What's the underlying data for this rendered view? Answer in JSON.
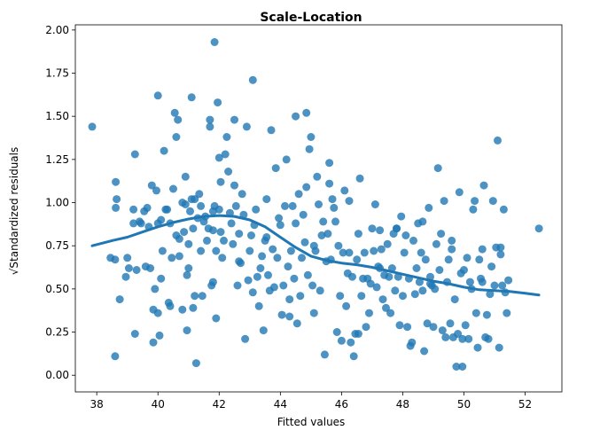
{
  "chart_data": {
    "type": "scatter",
    "title": "Scale-Location",
    "xlabel": "Fitted values",
    "ylabel": "√Standardized residuals",
    "xlim": [
      37.3,
      53.2
    ],
    "ylim": [
      -0.0965,
      2.03
    ],
    "xticks": [
      38,
      40,
      42,
      44,
      46,
      48,
      50,
      52
    ],
    "yticks": [
      0.0,
      0.25,
      0.5,
      0.75,
      1.0,
      1.25,
      1.5,
      1.75,
      2.0
    ],
    "xtick_labels": [
      "38",
      "40",
      "42",
      "44",
      "46",
      "48",
      "50",
      "52"
    ],
    "ytick_labels": [
      "0.00",
      "0.25",
      "0.50",
      "0.75",
      "1.00",
      "1.25",
      "1.50",
      "1.75",
      "2.00"
    ],
    "grid": false,
    "colors": {
      "points": "#1f77b4",
      "line": "#1f77b4"
    },
    "points": [
      [
        37.85,
        1.44
      ],
      [
        38.45,
        0.68
      ],
      [
        38.6,
        0.11
      ],
      [
        38.62,
        1.12
      ],
      [
        38.62,
        0.97
      ],
      [
        38.65,
        1.02
      ],
      [
        38.75,
        0.44
      ],
      [
        38.95,
        0.57
      ],
      [
        39.0,
        0.68
      ],
      [
        39.05,
        0.62
      ],
      [
        39.2,
        0.96
      ],
      [
        39.2,
        0.88
      ],
      [
        39.25,
        1.28
      ],
      [
        39.3,
        0.61
      ],
      [
        39.4,
        0.89
      ],
      [
        39.45,
        0.88
      ],
      [
        39.55,
        0.95
      ],
      [
        39.6,
        0.63
      ],
      [
        39.65,
        0.97
      ],
      [
        39.7,
        0.86
      ],
      [
        39.75,
        0.62
      ],
      [
        39.8,
        1.1
      ],
      [
        39.85,
        0.38
      ],
      [
        39.9,
        0.5
      ],
      [
        39.95,
        1.07
      ],
      [
        40.0,
        0.88
      ],
      [
        40.0,
        0.36
      ],
      [
        40.05,
        0.23
      ],
      [
        40.1,
        0.56
      ],
      [
        40.1,
        0.9
      ],
      [
        40.15,
        0.72
      ],
      [
        40.2,
        1.3
      ],
      [
        40.25,
        0.96
      ],
      [
        40.3,
        0.96
      ],
      [
        40.35,
        0.42
      ],
      [
        40.4,
        0.88
      ],
      [
        40.4,
        0.4
      ],
      [
        40.45,
        0.68
      ],
      [
        40.5,
        1.08
      ],
      [
        40.6,
        1.38
      ],
      [
        40.6,
        0.81
      ],
      [
        40.65,
        1.48
      ],
      [
        40.7,
        0.79
      ],
      [
        40.7,
        0.69
      ],
      [
        40.8,
        1.0
      ],
      [
        40.8,
        0.38
      ],
      [
        40.85,
        0.83
      ],
      [
        40.9,
        1.15
      ],
      [
        40.9,
        0.99
      ],
      [
        40.95,
        0.58
      ],
      [
        41.0,
        0.76
      ],
      [
        41.0,
        0.62
      ],
      [
        41.05,
        0.95
      ],
      [
        41.1,
        1.02
      ],
      [
        41.15,
        0.85
      ],
      [
        41.15,
        0.39
      ],
      [
        41.2,
        1.02
      ],
      [
        41.2,
        0.46
      ],
      [
        41.25,
        0.07
      ],
      [
        41.3,
        0.91
      ],
      [
        41.35,
        1.05
      ],
      [
        41.4,
        0.72
      ],
      [
        41.4,
        0.98
      ],
      [
        41.45,
        0.46
      ],
      [
        41.5,
        0.89
      ],
      [
        41.55,
        0.92
      ],
      [
        41.6,
        0.78
      ],
      [
        41.65,
        0.85
      ],
      [
        41.7,
        1.48
      ],
      [
        41.75,
        0.52
      ],
      [
        41.8,
        0.95
      ],
      [
        41.8,
        0.84
      ],
      [
        41.85,
        0.98
      ],
      [
        41.9,
        0.33
      ],
      [
        41.9,
        0.72
      ],
      [
        41.95,
        1.58
      ],
      [
        42.0,
        1.26
      ],
      [
        42.0,
        0.96
      ],
      [
        42.05,
        1.12
      ],
      [
        42.05,
        0.83
      ],
      [
        42.1,
        0.68
      ],
      [
        42.15,
        0.78
      ],
      [
        42.2,
        1.28
      ],
      [
        42.25,
        1.38
      ],
      [
        42.3,
        1.18
      ],
      [
        42.35,
        0.94
      ],
      [
        42.4,
        0.88
      ],
      [
        42.45,
        0.76
      ],
      [
        42.5,
        1.1
      ],
      [
        42.55,
        0.98
      ],
      [
        42.6,
        0.52
      ],
      [
        42.65,
        0.82
      ],
      [
        42.7,
        0.65
      ],
      [
        42.75,
        1.05
      ],
      [
        42.8,
        0.93
      ],
      [
        42.85,
        0.21
      ],
      [
        42.9,
        1.44
      ],
      [
        42.95,
        0.55
      ],
      [
        43.0,
        0.72
      ],
      [
        43.05,
        0.81
      ],
      [
        43.1,
        0.48
      ],
      [
        43.15,
        0.87
      ],
      [
        43.2,
        0.96
      ],
      [
        43.25,
        0.57
      ],
      [
        43.3,
        0.4
      ],
      [
        43.35,
        0.62
      ],
      [
        43.4,
        0.69
      ],
      [
        43.45,
        0.26
      ],
      [
        43.5,
        0.78
      ],
      [
        43.55,
        1.02
      ],
      [
        43.6,
        0.58
      ],
      [
        43.65,
        0.49
      ],
      [
        43.7,
        1.42
      ],
      [
        43.75,
        0.73
      ],
      [
        43.8,
        0.51
      ],
      [
        43.85,
        1.2
      ],
      [
        43.9,
        0.68
      ],
      [
        43.95,
        0.91
      ],
      [
        44.0,
        0.87
      ],
      [
        44.05,
        0.35
      ],
      [
        44.1,
        0.52
      ],
      [
        44.15,
        0.98
      ],
      [
        44.2,
        1.25
      ],
      [
        44.25,
        0.63
      ],
      [
        44.3,
        0.34
      ],
      [
        44.35,
        0.72
      ],
      [
        44.4,
        0.98
      ],
      [
        44.45,
        0.56
      ],
      [
        44.5,
        0.88
      ],
      [
        44.55,
        0.3
      ],
      [
        44.6,
        1.05
      ],
      [
        44.65,
        0.46
      ],
      [
        44.7,
        0.68
      ],
      [
        44.75,
        0.93
      ],
      [
        44.8,
        0.77
      ],
      [
        44.85,
        1.09
      ],
      [
        44.9,
        0.58
      ],
      [
        44.95,
        1.31
      ],
      [
        45.0,
        1.38
      ],
      [
        45.05,
        0.52
      ],
      [
        45.1,
        0.75
      ],
      [
        45.15,
        0.72
      ],
      [
        45.2,
        1.15
      ],
      [
        45.25,
        0.99
      ],
      [
        45.3,
        0.49
      ],
      [
        45.35,
        0.81
      ],
      [
        45.4,
        0.89
      ],
      [
        45.45,
        0.12
      ],
      [
        45.5,
        0.66
      ],
      [
        45.55,
        0.82
      ],
      [
        45.6,
        1.11
      ],
      [
        45.65,
        0.67
      ],
      [
        45.7,
        1.02
      ],
      [
        45.75,
        0.97
      ],
      [
        45.8,
        0.89
      ],
      [
        45.85,
        0.25
      ],
      [
        45.9,
        0.75
      ],
      [
        45.95,
        0.46
      ],
      [
        46.0,
        0.2
      ],
      [
        46.05,
        0.71
      ],
      [
        46.1,
        1.07
      ],
      [
        46.15,
        0.4
      ],
      [
        46.2,
        0.59
      ],
      [
        46.25,
        0.71
      ],
      [
        46.3,
        0.19
      ],
      [
        46.35,
        0.57
      ],
      [
        46.4,
        0.11
      ],
      [
        46.45,
        0.24
      ],
      [
        46.5,
        0.67
      ],
      [
        46.55,
        0.82
      ],
      [
        46.6,
        1.14
      ],
      [
        46.65,
        0.46
      ],
      [
        46.7,
        0.56
      ],
      [
        46.75,
        0.71
      ],
      [
        46.8,
        0.28
      ],
      [
        46.85,
        0.56
      ],
      [
        46.9,
        0.36
      ],
      [
        46.95,
        0.53
      ],
      [
        47.0,
        0.85
      ],
      [
        47.05,
        0.72
      ],
      [
        47.1,
        0.99
      ],
      [
        47.15,
        0.51
      ],
      [
        47.2,
        0.63
      ],
      [
        47.25,
        0.84
      ],
      [
        47.3,
        0.73
      ],
      [
        47.35,
        0.44
      ],
      [
        47.4,
        0.58
      ],
      [
        47.45,
        0.39
      ],
      [
        47.5,
        0.76
      ],
      [
        47.55,
        0.57
      ],
      [
        47.6,
        0.36
      ],
      [
        47.65,
        0.62
      ],
      [
        47.7,
        0.82
      ],
      [
        47.75,
        0.49
      ],
      [
        47.8,
        0.85
      ],
      [
        47.85,
        0.57
      ],
      [
        47.9,
        0.29
      ],
      [
        47.95,
        0.92
      ],
      [
        48.0,
        0.46
      ],
      [
        48.05,
        0.71
      ],
      [
        48.1,
        0.81
      ],
      [
        48.15,
        0.28
      ],
      [
        48.2,
        0.56
      ],
      [
        48.25,
        0.17
      ],
      [
        48.3,
        0.19
      ],
      [
        48.35,
        0.78
      ],
      [
        48.4,
        0.47
      ],
      [
        48.45,
        0.62
      ],
      [
        48.5,
        0.88
      ],
      [
        48.55,
        0.54
      ],
      [
        48.6,
        0.71
      ],
      [
        48.65,
        0.49
      ],
      [
        48.7,
        0.14
      ],
      [
        48.75,
        0.67
      ],
      [
        48.8,
        0.3
      ],
      [
        48.85,
        0.97
      ],
      [
        48.9,
        0.57
      ],
      [
        48.95,
        0.52
      ],
      [
        49.0,
        0.28
      ],
      [
        49.05,
        0.5
      ],
      [
        49.1,
        0.76
      ],
      [
        49.15,
        1.2
      ],
      [
        49.2,
        0.61
      ],
      [
        49.25,
        0.82
      ],
      [
        49.3,
        0.26
      ],
      [
        49.35,
        1.01
      ],
      [
        49.4,
        0.22
      ],
      [
        49.45,
        0.54
      ],
      [
        49.5,
        0.67
      ],
      [
        49.55,
        0.3
      ],
      [
        49.6,
        0.78
      ],
      [
        49.65,
        0.22
      ],
      [
        49.7,
        0.44
      ],
      [
        49.75,
        0.05
      ],
      [
        49.8,
        0.24
      ],
      [
        49.85,
        1.06
      ],
      [
        49.9,
        0.59
      ],
      [
        49.95,
        0.05
      ],
      [
        50.0,
        0.61
      ],
      [
        50.05,
        0.29
      ],
      [
        50.1,
        0.68
      ],
      [
        50.15,
        0.21
      ],
      [
        50.2,
        0.54
      ],
      [
        50.25,
        0.5
      ],
      [
        50.3,
        0.96
      ],
      [
        50.35,
        1.01
      ],
      [
        50.4,
        0.36
      ],
      [
        50.45,
        0.16
      ],
      [
        50.5,
        0.67
      ],
      [
        50.55,
        0.56
      ],
      [
        50.6,
        0.73
      ],
      [
        50.65,
        1.1
      ],
      [
        50.7,
        0.22
      ],
      [
        50.75,
        0.35
      ],
      [
        50.8,
        0.21
      ],
      [
        50.85,
        0.47
      ],
      [
        50.9,
        0.63
      ],
      [
        50.95,
        1.01
      ],
      [
        51.0,
        0.52
      ],
      [
        51.05,
        0.74
      ],
      [
        51.1,
        1.36
      ],
      [
        51.15,
        0.16
      ],
      [
        51.2,
        0.74
      ],
      [
        51.25,
        0.52
      ],
      [
        51.3,
        0.96
      ],
      [
        51.35,
        0.48
      ],
      [
        51.4,
        0.36
      ],
      [
        51.45,
        0.55
      ],
      [
        52.45,
        0.85
      ],
      [
        40.55,
        1.52
      ],
      [
        41.1,
        1.61
      ],
      [
        41.85,
        1.93
      ],
      [
        43.1,
        1.71
      ],
      [
        44.85,
        1.52
      ],
      [
        40.0,
        1.62
      ],
      [
        42.5,
        1.48
      ],
      [
        44.5,
        1.5
      ],
      [
        41.7,
        1.44
      ],
      [
        45.6,
        1.23
      ],
      [
        46.25,
        1.01
      ],
      [
        47.8,
        0.85
      ],
      [
        48.65,
        0.89
      ],
      [
        49.6,
        0.73
      ],
      [
        50.6,
        0.54
      ],
      [
        51.2,
        0.7
      ],
      [
        38.6,
        0.67
      ],
      [
        39.25,
        0.24
      ],
      [
        39.85,
        0.19
      ],
      [
        40.95,
        0.26
      ],
      [
        41.8,
        0.54
      ],
      [
        42.65,
        0.66
      ],
      [
        43.55,
        0.8
      ],
      [
        44.3,
        0.44
      ],
      [
        45.1,
        0.36
      ],
      [
        46.55,
        0.24
      ],
      [
        47.25,
        0.62
      ],
      [
        48.9,
        0.53
      ],
      [
        49.95,
        0.21
      ]
    ],
    "trend": [
      [
        37.85,
        0.75
      ],
      [
        38.5,
        0.78
      ],
      [
        39.0,
        0.8
      ],
      [
        39.5,
        0.83
      ],
      [
        40.0,
        0.86
      ],
      [
        40.5,
        0.885
      ],
      [
        41.0,
        0.905
      ],
      [
        41.5,
        0.92
      ],
      [
        42.0,
        0.925
      ],
      [
        42.5,
        0.92
      ],
      [
        43.0,
        0.9
      ],
      [
        43.5,
        0.86
      ],
      [
        44.0,
        0.8
      ],
      [
        44.5,
        0.74
      ],
      [
        45.0,
        0.69
      ],
      [
        45.5,
        0.665
      ],
      [
        46.0,
        0.65
      ],
      [
        46.5,
        0.64
      ],
      [
        47.0,
        0.625
      ],
      [
        47.5,
        0.605
      ],
      [
        48.0,
        0.585
      ],
      [
        48.5,
        0.565
      ],
      [
        49.0,
        0.545
      ],
      [
        49.5,
        0.53
      ],
      [
        50.0,
        0.51
      ],
      [
        50.5,
        0.495
      ],
      [
        51.0,
        0.49
      ],
      [
        51.5,
        0.485
      ],
      [
        52.0,
        0.475
      ],
      [
        52.45,
        0.465
      ]
    ]
  }
}
